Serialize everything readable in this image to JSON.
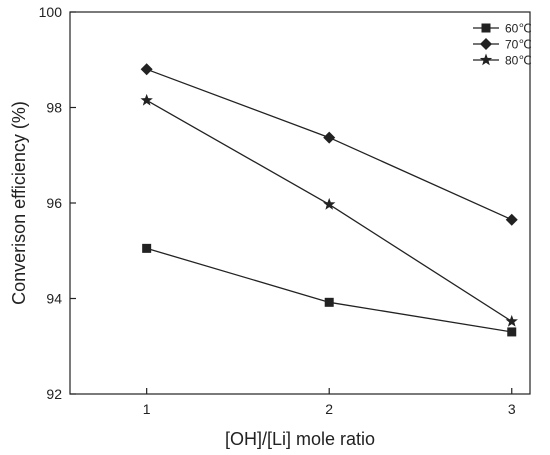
{
  "chart_data": {
    "type": "line",
    "x": [
      1,
      2,
      3
    ],
    "series": [
      {
        "name": "60℃",
        "marker": "square",
        "values": [
          95.05,
          93.92,
          93.3
        ]
      },
      {
        "name": "70℃",
        "marker": "diamond",
        "values": [
          98.8,
          97.37,
          95.65
        ]
      },
      {
        "name": "80℃",
        "marker": "star",
        "values": [
          98.15,
          95.97,
          93.52
        ]
      }
    ],
    "xlabel": "[OH]/[Li] mole ratio",
    "ylabel": "Converison efficiency (%)",
    "xlim": [
      0.58,
      3.1
    ],
    "ylim": [
      92,
      100
    ],
    "xticks": [
      "1",
      "2",
      "3"
    ],
    "yticks": [
      "92",
      "94",
      "96",
      "98",
      "100"
    ],
    "grid": false,
    "legend_position": "top-right",
    "line_color": "#222222"
  }
}
